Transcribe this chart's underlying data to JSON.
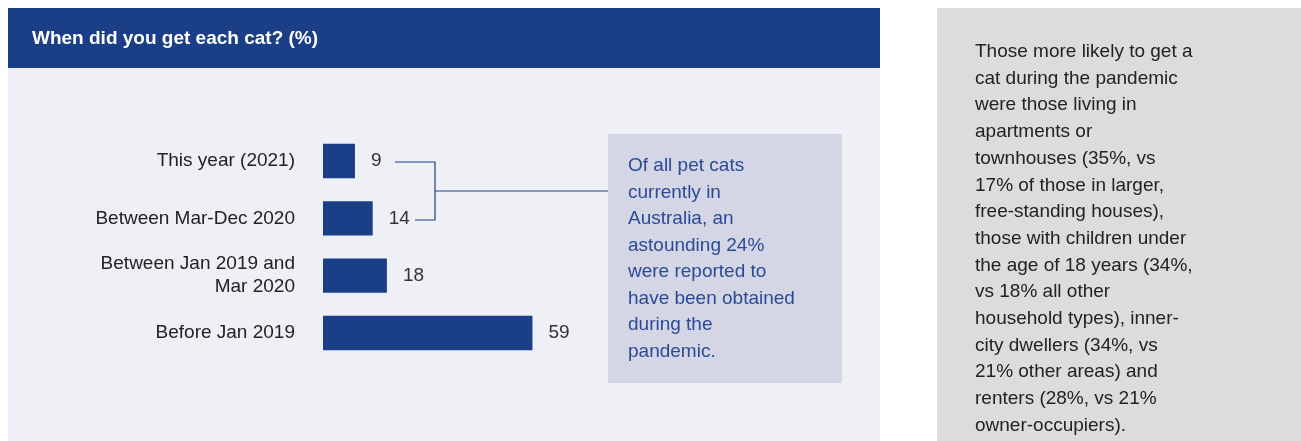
{
  "chart_data": {
    "type": "bar",
    "orientation": "horizontal",
    "title": "When did you get each cat? (%)",
    "categories": [
      "This year (2021)",
      "Between Mar-Dec 2020",
      "Between Jan 2019 and Mar 2020",
      "Before Jan 2019"
    ],
    "values": [
      9,
      14,
      18,
      59
    ],
    "color": "#1b3f87",
    "data_labels": true,
    "legend": false,
    "annotations": [
      "Of all pet cats currently in Australia, an astounding 24% were reported to have been obtained during the pandemic.",
      "Those more likely to get a cat during the pandemic were those living in apartments or townhouses (35%, vs 17% of those in larger, free-standing houses), those with children under the age of 18 years (34%, vs 18% all other household types), inner-city dwellers (34%, vs 21% other areas) and renters (28%, vs 21% owner-occupiers)."
    ]
  }
}
